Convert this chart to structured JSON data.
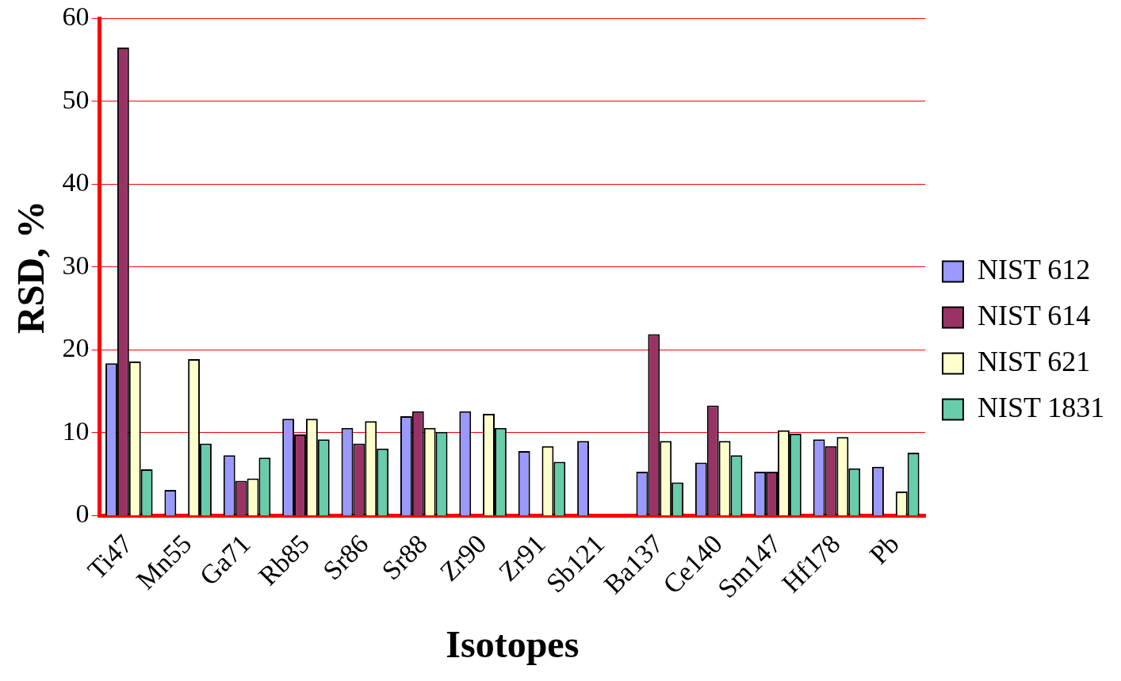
{
  "chart_data": {
    "type": "bar",
    "xlabel": "Isotopes",
    "ylabel": "RSD, %",
    "categories": [
      "Ti47",
      "Mn55",
      "Ga71",
      "Rb85",
      "Sr86",
      "Sr88",
      "Zr90",
      "Zr91",
      "Sb121",
      "Ba137",
      "Ce140",
      "Sm147",
      "Hf178",
      "Pb"
    ],
    "series": [
      {
        "name": "NIST 612",
        "color": "#9999ff",
        "values": [
          18.4,
          3.1,
          7.3,
          11.7,
          10.6,
          12.0,
          12.6,
          7.8,
          9.0,
          5.3,
          6.4,
          5.3,
          9.2,
          5.9
        ]
      },
      {
        "name": "NIST 614",
        "color": "#993366",
        "values": [
          56.5,
          null,
          4.2,
          9.8,
          8.7,
          12.6,
          null,
          null,
          null,
          21.9,
          13.3,
          5.3,
          8.4,
          null
        ]
      },
      {
        "name": "NIST 621",
        "color": "#ffffcc",
        "values": [
          18.6,
          18.9,
          4.5,
          11.7,
          11.4,
          10.6,
          12.3,
          8.4,
          null,
          9.0,
          9.0,
          10.3,
          9.5,
          2.9
        ]
      },
      {
        "name": "NIST 1831",
        "color": "#66ccaa",
        "values": [
          5.6,
          8.7,
          7.0,
          9.2,
          8.1,
          10.1,
          10.6,
          6.5,
          null,
          4.0,
          7.3,
          9.9,
          5.7,
          7.6
        ]
      }
    ],
    "ylim": [
      0,
      60
    ],
    "yticks": [
      0,
      10,
      20,
      30,
      40,
      50,
      60
    ],
    "grid": "y",
    "legend": "right"
  }
}
